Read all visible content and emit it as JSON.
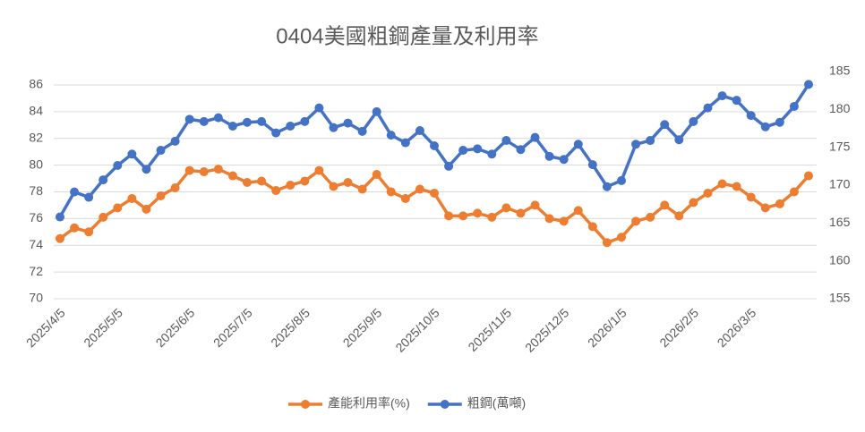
{
  "chart_data": {
    "type": "line",
    "title": "0404美國粗鋼產量及利用率",
    "categories": [
      "2025/4/5",
      null,
      null,
      null,
      "2025/5/5",
      null,
      null,
      null,
      null,
      "2025/6/5",
      null,
      null,
      null,
      "2025/7/5",
      null,
      null,
      null,
      "2025/8/5",
      null,
      null,
      null,
      null,
      "2025/9/5",
      null,
      null,
      null,
      "2025/10/5",
      null,
      null,
      null,
      null,
      "2025/11/5",
      null,
      null,
      null,
      "2025/12/5",
      null,
      null,
      null,
      "2026/1/5",
      null,
      null,
      null,
      null,
      "2026/2/5",
      null,
      null,
      null,
      "2026/3/5",
      null,
      null,
      null,
      null
    ],
    "series": [
      {
        "name": "產能利用率(%)",
        "color": "#ed7d31",
        "axis": "y",
        "values": [
          74.5,
          75.3,
          75.0,
          76.1,
          76.8,
          77.5,
          76.7,
          77.7,
          78.3,
          79.6,
          79.5,
          79.7,
          79.2,
          78.7,
          78.8,
          78.1,
          78.5,
          78.8,
          79.6,
          78.4,
          78.7,
          78.2,
          79.3,
          78.0,
          77.5,
          78.2,
          77.9,
          76.2,
          76.2,
          76.4,
          76.1,
          76.8,
          76.4,
          77.0,
          76.0,
          75.8,
          76.6,
          75.4,
          74.2,
          74.6,
          75.8,
          76.1,
          77.0,
          76.2,
          77.2,
          77.9,
          78.6,
          78.4,
          77.6,
          76.8,
          77.1,
          78.0,
          79.2
        ]
      },
      {
        "name": "粗鋼(萬噸)",
        "color": "#4472c4",
        "axis": "y2",
        "values": [
          165.8,
          169.1,
          168.4,
          170.7,
          172.6,
          174.1,
          172.1,
          174.6,
          175.8,
          178.7,
          178.4,
          178.9,
          177.8,
          178.3,
          178.4,
          176.9,
          177.8,
          178.4,
          180.2,
          177.6,
          178.2,
          177.1,
          179.7,
          176.6,
          175.6,
          177.2,
          175.2,
          172.5,
          174.6,
          174.8,
          174.1,
          175.9,
          174.7,
          176.3,
          173.8,
          173.4,
          175.4,
          172.7,
          169.8,
          170.6,
          175.4,
          175.9,
          178.0,
          176.0,
          178.4,
          180.2,
          181.8,
          181.2,
          179.2,
          177.7,
          178.3,
          180.4,
          183.3
        ]
      }
    ],
    "ylim": [
      70,
      87
    ],
    "yticks": [
      70,
      72,
      74,
      76,
      78,
      80,
      82,
      84,
      86
    ],
    "y2lim": [
      155,
      185
    ],
    "y2ticks": [
      155,
      160,
      165,
      170,
      175,
      180,
      185
    ],
    "grid": true,
    "legend": "bottom"
  }
}
